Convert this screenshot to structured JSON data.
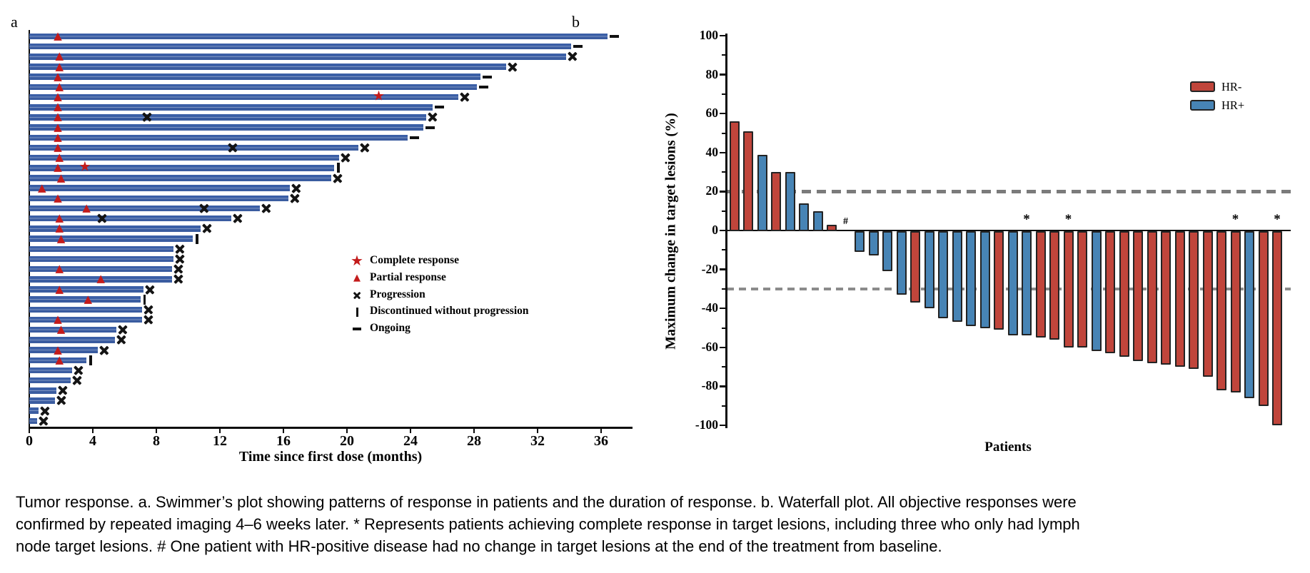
{
  "figure": {
    "panel_a_label": "a",
    "panel_b_label": "b"
  },
  "caption": {
    "lines": [
      "Tumor response. a. Swimmer’s plot showing patterns of response in patients and the duration of response. b. Waterfall plot. All objective responses were",
      "confirmed by repeated imaging 4–6 weeks later. * Represents patients achieving complete response in target lesions, including three who only had lymph",
      "node target lesions. # One patient with HR-positive disease had no change in target lesions at the end of the treatment from baseline."
    ]
  },
  "colors": {
    "swimmer_bar": "#3B5FA6",
    "hr_negative_red": "#C0453B",
    "hr_positive_blue": "#4784B5",
    "marker_red": "#C31B1B",
    "marker_black": "#141414",
    "bar_outline": "#232323",
    "reference_dash_gray": "#7B7B7B",
    "axis_black": "#000000"
  },
  "chart_data": [
    {
      "type": "swimmer",
      "panel": "a",
      "xlabel": "Time since first dose (months)",
      "x_ticks": [
        0,
        4,
        8,
        12,
        16,
        20,
        24,
        28,
        32,
        36
      ],
      "xlim": [
        0,
        38
      ],
      "legend": [
        {
          "icon": "star",
          "label": "Complete response"
        },
        {
          "icon": "triangle",
          "label": "Partial response"
        },
        {
          "icon": "x",
          "label": "Progression"
        },
        {
          "icon": "vbar",
          "label": "Discontinued without progression"
        },
        {
          "icon": "dash",
          "label": "Ongoing"
        }
      ],
      "patients": [
        {
          "duration": 36.4,
          "end": "ongoing",
          "partial_response_at": 1.8
        },
        {
          "duration": 34.1,
          "end": "ongoing"
        },
        {
          "duration": 33.8,
          "end": "progression",
          "partial_response_at": 1.9
        },
        {
          "duration": 30.0,
          "end": "progression",
          "partial_response_at": 1.9
        },
        {
          "duration": 28.4,
          "end": "ongoing",
          "partial_response_at": 1.8
        },
        {
          "duration": 28.2,
          "end": "ongoing",
          "partial_response_at": 1.9
        },
        {
          "duration": 27.0,
          "end": "progression",
          "partial_response_at": 1.8,
          "complete_response_at": 22.0
        },
        {
          "duration": 25.4,
          "end": "ongoing",
          "partial_response_at": 1.8
        },
        {
          "duration": 25.0,
          "end": "progression",
          "partial_response_at": 1.8,
          "progression_at": 7.4
        },
        {
          "duration": 24.8,
          "end": "ongoing",
          "partial_response_at": 1.8
        },
        {
          "duration": 23.8,
          "end": "ongoing",
          "partial_response_at": 1.8
        },
        {
          "duration": 20.7,
          "end": "progression",
          "partial_response_at": 1.8,
          "progression_at": 12.8
        },
        {
          "duration": 19.5,
          "end": "progression",
          "partial_response_at": 1.9
        },
        {
          "duration": 19.2,
          "end": "discontinued",
          "partial_response_at": 1.8,
          "complete_response_at": 3.5
        },
        {
          "duration": 19.0,
          "end": "progression",
          "partial_response_at": 2.0
        },
        {
          "duration": 16.4,
          "end": "progression",
          "partial_response_at": 0.8
        },
        {
          "duration": 16.3,
          "end": "progression",
          "partial_response_at": 1.8
        },
        {
          "duration": 14.5,
          "end": "progression",
          "partial_response_at": 3.6,
          "progression_at": 11.0
        },
        {
          "duration": 12.7,
          "end": "progression",
          "partial_response_at": 1.9,
          "progression_at": 4.6
        },
        {
          "duration": 10.8,
          "end": "progression",
          "partial_response_at": 1.9
        },
        {
          "duration": 10.3,
          "end": "discontinued",
          "partial_response_at": 2.0
        },
        {
          "duration": 9.1,
          "end": "progression"
        },
        {
          "duration": 9.1,
          "end": "progression"
        },
        {
          "duration": 9.0,
          "end": "progression",
          "partial_response_at": 1.9
        },
        {
          "duration": 9.0,
          "end": "progression",
          "partial_response_at": 4.5
        },
        {
          "duration": 7.2,
          "end": "progression",
          "partial_response_at": 1.9
        },
        {
          "duration": 7.0,
          "end": "discontinued",
          "partial_response_at": 3.7
        },
        {
          "duration": 7.1,
          "end": "progression"
        },
        {
          "duration": 7.1,
          "end": "progression",
          "partial_response_at": 1.8
        },
        {
          "duration": 5.5,
          "end": "progression",
          "partial_response_at": 2.0
        },
        {
          "duration": 5.4,
          "end": "progression"
        },
        {
          "duration": 4.3,
          "end": "progression",
          "partial_response_at": 1.8
        },
        {
          "duration": 3.6,
          "end": "discontinued",
          "partial_response_at": 1.9
        },
        {
          "duration": 2.7,
          "end": "progression"
        },
        {
          "duration": 2.6,
          "end": "progression"
        },
        {
          "duration": 1.7,
          "end": "progression"
        },
        {
          "duration": 1.6,
          "end": "progression"
        },
        {
          "duration": 0.6,
          "end": "progression"
        },
        {
          "duration": 0.5,
          "end": "progression"
        }
      ]
    },
    {
      "type": "waterfall",
      "panel": "b",
      "ylabel": "Maximum change in target lesions (%)",
      "xlabel": "Patients",
      "ylim": [
        -100,
        100
      ],
      "y_ticks": [
        100,
        80,
        60,
        40,
        20,
        0,
        -20,
        -40,
        -60,
        -80,
        -100
      ],
      "reference_lines": [
        20,
        -30
      ],
      "legend": [
        {
          "label": "HR-",
          "group": "hr_neg"
        },
        {
          "label": "HR+",
          "group": "hr_pos"
        }
      ],
      "bars": [
        {
          "value": 56,
          "group": "hr_neg"
        },
        {
          "value": 51,
          "group": "hr_neg"
        },
        {
          "value": 39,
          "group": "hr_pos"
        },
        {
          "value": 30,
          "group": "hr_neg"
        },
        {
          "value": 30,
          "group": "hr_pos"
        },
        {
          "value": 14,
          "group": "hr_pos"
        },
        {
          "value": 10,
          "group": "hr_pos"
        },
        {
          "value": 3,
          "group": "hr_neg"
        },
        {
          "value": 0,
          "group": "hr_pos",
          "flag": "#"
        },
        {
          "value": -11,
          "group": "hr_pos"
        },
        {
          "value": -13,
          "group": "hr_pos"
        },
        {
          "value": -21,
          "group": "hr_pos"
        },
        {
          "value": -33,
          "group": "hr_pos"
        },
        {
          "value": -37,
          "group": "hr_neg"
        },
        {
          "value": -40,
          "group": "hr_pos"
        },
        {
          "value": -45,
          "group": "hr_pos"
        },
        {
          "value": -47,
          "group": "hr_pos"
        },
        {
          "value": -49,
          "group": "hr_pos"
        },
        {
          "value": -50,
          "group": "hr_pos"
        },
        {
          "value": -51,
          "group": "hr_neg"
        },
        {
          "value": -54,
          "group": "hr_pos"
        },
        {
          "value": -54,
          "group": "hr_pos",
          "flag": "*"
        },
        {
          "value": -55,
          "group": "hr_neg"
        },
        {
          "value": -56,
          "group": "hr_neg"
        },
        {
          "value": -60,
          "group": "hr_neg",
          "flag": "*"
        },
        {
          "value": -60,
          "group": "hr_neg"
        },
        {
          "value": -62,
          "group": "hr_pos"
        },
        {
          "value": -63,
          "group": "hr_neg"
        },
        {
          "value": -65,
          "group": "hr_neg"
        },
        {
          "value": -67,
          "group": "hr_neg"
        },
        {
          "value": -68,
          "group": "hr_neg"
        },
        {
          "value": -69,
          "group": "hr_neg"
        },
        {
          "value": -70,
          "group": "hr_neg"
        },
        {
          "value": -71,
          "group": "hr_neg"
        },
        {
          "value": -75,
          "group": "hr_neg"
        },
        {
          "value": -82,
          "group": "hr_neg"
        },
        {
          "value": -83,
          "group": "hr_neg",
          "flag": "*"
        },
        {
          "value": -86,
          "group": "hr_pos"
        },
        {
          "value": -90,
          "group": "hr_neg"
        },
        {
          "value": -100,
          "group": "hr_neg",
          "flag": "*"
        }
      ]
    }
  ]
}
